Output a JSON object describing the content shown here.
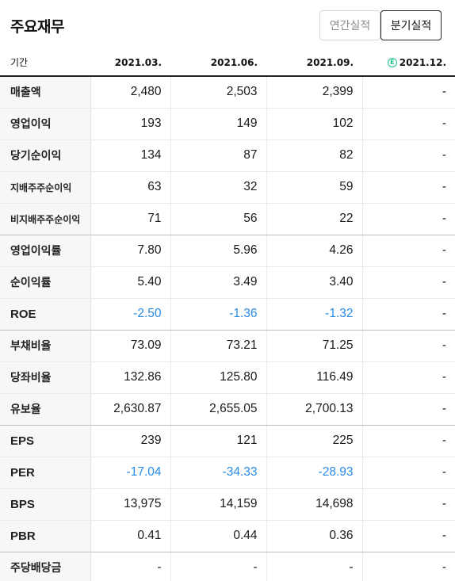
{
  "header": {
    "title": "주요재무",
    "annual_label": "연간실적",
    "quarter_label": "분기실적"
  },
  "table": {
    "label_header": "기간",
    "columns": [
      "2021.03.",
      "2021.06.",
      "2021.09.",
      "2021.12."
    ],
    "estimate_badge": "E",
    "accent_color": "#2a8be8",
    "rows": [
      {
        "label": "매출액",
        "values": [
          "2,480",
          "2,503",
          "2,399",
          "-"
        ]
      },
      {
        "label": "영업이익",
        "values": [
          "193",
          "149",
          "102",
          "-"
        ]
      },
      {
        "label": "당기순이익",
        "values": [
          "134",
          "87",
          "82",
          "-"
        ]
      },
      {
        "label": "지배주주순이익",
        "values": [
          "63",
          "32",
          "59",
          "-"
        ]
      },
      {
        "label": "비지배주주순이익",
        "values": [
          "71",
          "56",
          "22",
          "-"
        ]
      },
      {
        "label": "영업이익률",
        "values": [
          "7.80",
          "5.96",
          "4.26",
          "-"
        ]
      },
      {
        "label": "순이익률",
        "values": [
          "5.40",
          "3.49",
          "3.40",
          "-"
        ]
      },
      {
        "label": "ROE",
        "values": [
          "-2.50",
          "-1.36",
          "-1.32",
          "-"
        ]
      },
      {
        "label": "부채비율",
        "values": [
          "73.09",
          "73.21",
          "71.25",
          "-"
        ]
      },
      {
        "label": "당좌비율",
        "values": [
          "132.86",
          "125.80",
          "116.49",
          "-"
        ]
      },
      {
        "label": "유보율",
        "values": [
          "2,630.87",
          "2,655.05",
          "2,700.13",
          "-"
        ]
      },
      {
        "label": "EPS",
        "values": [
          "239",
          "121",
          "225",
          "-"
        ]
      },
      {
        "label": "PER",
        "values": [
          "-17.04",
          "-34.33",
          "-28.93",
          "-"
        ]
      },
      {
        "label": "BPS",
        "values": [
          "13,975",
          "14,159",
          "14,698",
          "-"
        ]
      },
      {
        "label": "PBR",
        "values": [
          "0.41",
          "0.44",
          "0.36",
          "-"
        ]
      },
      {
        "label": "주당배당금",
        "values": [
          "-",
          "-",
          "-",
          "-"
        ]
      }
    ]
  }
}
